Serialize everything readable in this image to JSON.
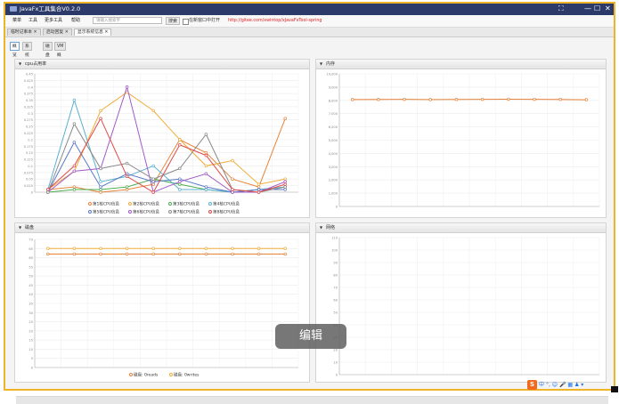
{
  "window": {
    "title": "JavaFx工具集合V0.2.0",
    "buttons": [
      "⛶",
      "—",
      "☐",
      "✕"
    ]
  },
  "menubar": {
    "items": [
      "菜单",
      "工具",
      "更多工具",
      "帮助"
    ],
    "search_placeholder": "请输入搜索字",
    "search_button": "搜索",
    "checkbox_label": "在新窗口中打开",
    "link": "http://gitee.com/xwintop/xJavaFxTool-spring"
  },
  "tabs": [
    "临时记事本",
    "启动回复",
    "显示系统信息"
  ],
  "subtabs": [
    "概览",
    "系统信息",
    "磁盘",
    "VM概要"
  ],
  "colors": {
    "series": [
      "#e8833a",
      "#f0ac3a",
      "#4caf50",
      "#5ab0d0",
      "#5a78c8",
      "#a05ac8",
      "#8a8a8a",
      "#e04a4a",
      "#ffb04a",
      "#b44ac8"
    ]
  },
  "panels": {
    "cpu": {
      "title": "cpu占用率",
      "chart_data": {
        "type": "line",
        "x_count": 10,
        "ylim": [
          0,
          0.45
        ],
        "yticks": [
          "0",
          "0.025",
          "0.05",
          "0.075",
          "0.1",
          "0.125",
          "0.15",
          "0.175",
          "0.2",
          "0.225",
          "0.25",
          "0.275",
          "0.3",
          "0.325",
          "0.35",
          "0.375",
          "0.4",
          "0.425",
          "0.45"
        ],
        "series": [
          {
            "name": "第1核CPU信息",
            "values": [
              0.01,
              0.02,
              0.0,
              0.01,
              0.03,
              0.2,
              0.15,
              0.05,
              0.02,
              0.28
            ]
          },
          {
            "name": "第2核CPU信息",
            "values": [
              0.01,
              0.08,
              0.31,
              0.38,
              0.31,
              0.2,
              0.1,
              0.12,
              0.03,
              0.05
            ]
          },
          {
            "name": "第3核CPU信息",
            "values": [
              0.0,
              0.01,
              0.01,
              0.02,
              0.05,
              0.03,
              0.01,
              0.0,
              0.01,
              0.02
            ]
          },
          {
            "name": "第4核CPU信息",
            "values": [
              0.01,
              0.35,
              0.04,
              0.06,
              0.1,
              0.01,
              0.01,
              0.0,
              0.01,
              0.02
            ]
          },
          {
            "name": "第5核CPU信息",
            "values": [
              0.0,
              0.19,
              0.02,
              0.07,
              0.04,
              0.05,
              0.02,
              0.0,
              0.01,
              0.01
            ]
          },
          {
            "name": "第6核CPU信息",
            "values": [
              0.0,
              0.08,
              0.09,
              0.4,
              0.0,
              0.04,
              0.07,
              0.0,
              0.0,
              0.04
            ]
          },
          {
            "name": "第7核CPU信息",
            "values": [
              0.0,
              0.26,
              0.09,
              0.11,
              0.05,
              0.09,
              0.22,
              0.01,
              0.0,
              0.02
            ]
          },
          {
            "name": "第8核CPU信息",
            "values": [
              0.01,
              0.1,
              0.28,
              0.06,
              0.0,
              0.18,
              0.14,
              0.01,
              0.0,
              0.03
            ]
          }
        ]
      }
    },
    "memory": {
      "title": "内存",
      "chart_data": {
        "type": "line",
        "x_count": 10,
        "ylim": [
          0,
          10000
        ],
        "yticks": [
          "0",
          "1,000",
          "2,000",
          "3,000",
          "4,000",
          "5,000",
          "6,000",
          "7,000",
          "8,000",
          "9,000",
          "10,000"
        ],
        "series": [
          {
            "name": "",
            "values": [
              8060,
              8070,
              8080,
              8060,
              8070,
              8080,
              8090,
              8080,
              8070,
              8050
            ]
          }
        ]
      }
    },
    "disk": {
      "title": "磁盘",
      "chart_data": {
        "type": "line",
        "x_count": 10,
        "ylim": [
          0,
          70
        ],
        "yticks": [
          "0",
          "5",
          "10",
          "15",
          "20",
          "25",
          "30",
          "35",
          "40",
          "45",
          "50",
          "55",
          "60",
          "65",
          "70"
        ],
        "series": [
          {
            "name": "磁盘: 0reads",
            "values": [
              62,
              62,
              62,
              62,
              62,
              62,
              62,
              62,
              62,
              62
            ]
          },
          {
            "name": "磁盘: 0writes",
            "values": [
              65,
              65,
              65,
              65,
              65,
              65,
              65,
              65,
              65,
              65
            ]
          }
        ]
      }
    },
    "network": {
      "title": "网络",
      "chart_data": {
        "type": "line",
        "ylim": [
          0,
          110
        ],
        "yticks": [
          "0",
          "10",
          "20",
          "30",
          "40",
          "50",
          "60",
          "70",
          "80",
          "90",
          "100",
          "110"
        ],
        "series": []
      }
    }
  },
  "overlay": {
    "edit_label": "编辑"
  },
  "ime": {
    "logo": "S",
    "label": "中"
  }
}
